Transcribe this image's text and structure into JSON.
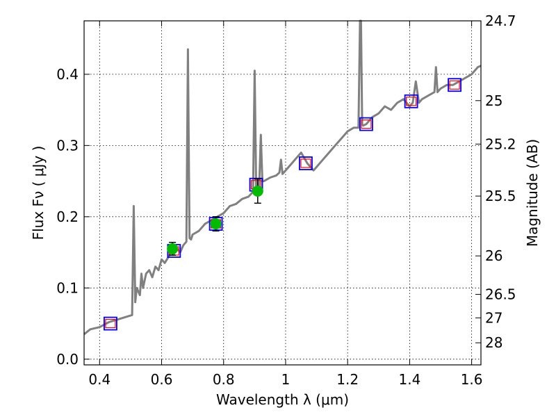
{
  "chart_data": {
    "type": "line",
    "xlabel": "Wavelength  λ (μm)",
    "ylabel": "Flux  Fν  ( μJy )",
    "ylabel_right": "Magnitude (AB)",
    "xlim": [
      0.35,
      1.63
    ],
    "ylim": [
      -0.008,
      0.475
    ],
    "grid": true,
    "x_ticks": [
      0.4,
      0.6,
      0.8,
      1.0,
      1.2,
      1.4,
      1.6
    ],
    "x_tick_labels": [
      "0.4",
      "0.6",
      "0.8",
      "1",
      "1.2",
      "1.4",
      "1.6"
    ],
    "y_ticks": [
      0.0,
      0.1,
      0.2,
      0.3,
      0.4
    ],
    "y_tick_labels": [
      "0.0",
      "0.1",
      "0.2",
      "0.3",
      "0.4"
    ],
    "right_ticks": [
      {
        "label": "24.7",
        "flux": 0.475
      },
      {
        "label": "25",
        "flux": 0.363
      },
      {
        "label": "25.2",
        "flux": 0.302
      },
      {
        "label": "25.5",
        "flux": 0.229
      },
      {
        "label": "26",
        "flux": 0.145
      },
      {
        "label": "26.5",
        "flux": 0.091
      },
      {
        "label": "27",
        "flux": 0.058
      },
      {
        "label": "28",
        "flux": 0.023
      }
    ],
    "colors": {
      "sed_line": "#808080",
      "model_box": "#0000ff",
      "model_box_inner": "#ff0000",
      "observed_point": "#00bb00",
      "errorbar": "#000000"
    },
    "series": [
      {
        "type": "line",
        "x": [
          0.35,
          0.37,
          0.4,
          0.43,
          0.46,
          0.49,
          0.505,
          0.51,
          0.515,
          0.52,
          0.53,
          0.535,
          0.54,
          0.545,
          0.55,
          0.56,
          0.57,
          0.58,
          0.59,
          0.6,
          0.61,
          0.62,
          0.63,
          0.64,
          0.65,
          0.66,
          0.67,
          0.68,
          0.685,
          0.69,
          0.695,
          0.7,
          0.72,
          0.74,
          0.76,
          0.78,
          0.8,
          0.82,
          0.84,
          0.86,
          0.88,
          0.895,
          0.9,
          0.905,
          0.91,
          0.915,
          0.92,
          0.925,
          0.93,
          0.95,
          0.97,
          0.98,
          0.985,
          0.99,
          1.0,
          1.02,
          1.04,
          1.05,
          1.07,
          1.09,
          1.1,
          1.12,
          1.14,
          1.16,
          1.18,
          1.2,
          1.22,
          1.235,
          1.24,
          1.243,
          1.247,
          1.25,
          1.26,
          1.28,
          1.3,
          1.32,
          1.34,
          1.36,
          1.38,
          1.4,
          1.41,
          1.42,
          1.43,
          1.44,
          1.46,
          1.48,
          1.485,
          1.49,
          1.5,
          1.52,
          1.54,
          1.56,
          1.58,
          1.6,
          1.62,
          1.63
        ],
        "values": [
          0.035,
          0.042,
          0.045,
          0.052,
          0.056,
          0.06,
          0.062,
          0.215,
          0.08,
          0.1,
          0.09,
          0.12,
          0.1,
          0.11,
          0.12,
          0.125,
          0.115,
          0.13,
          0.125,
          0.14,
          0.135,
          0.142,
          0.15,
          0.148,
          0.155,
          0.15,
          0.16,
          0.165,
          0.435,
          0.17,
          0.168,
          0.175,
          0.18,
          0.19,
          0.195,
          0.2,
          0.205,
          0.215,
          0.218,
          0.225,
          0.228,
          0.235,
          0.405,
          0.24,
          0.23,
          0.245,
          0.315,
          0.25,
          0.25,
          0.255,
          0.258,
          0.262,
          0.28,
          0.26,
          0.265,
          0.275,
          0.285,
          0.29,
          0.275,
          0.265,
          0.27,
          0.28,
          0.29,
          0.3,
          0.31,
          0.32,
          0.325,
          0.325,
          0.475,
          0.475,
          0.33,
          0.328,
          0.33,
          0.34,
          0.345,
          0.355,
          0.35,
          0.36,
          0.365,
          0.355,
          0.36,
          0.39,
          0.36,
          0.365,
          0.37,
          0.375,
          0.41,
          0.375,
          0.38,
          0.385,
          0.385,
          0.39,
          0.395,
          0.4,
          0.41,
          0.412
        ]
      },
      {
        "type": "scatter",
        "marker": "square",
        "x": [
          0.435,
          0.64,
          0.775,
          0.905,
          1.065,
          1.26,
          1.405,
          1.545
        ],
        "values": [
          0.05,
          0.152,
          0.19,
          0.245,
          0.275,
          0.33,
          0.362,
          0.385
        ]
      },
      {
        "type": "errorbar",
        "marker": "circle",
        "x": [
          0.635,
          0.775,
          0.91
        ],
        "values": [
          0.155,
          0.19,
          0.236
        ],
        "errors": [
          0.009,
          0.01,
          0.017
        ]
      }
    ]
  }
}
